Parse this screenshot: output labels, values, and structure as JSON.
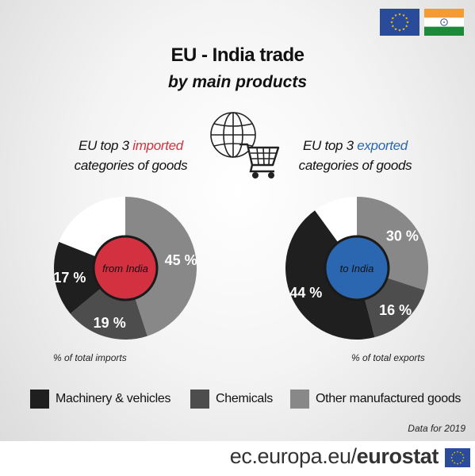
{
  "header": {
    "title": "EU - India trade",
    "subtitle": "by main products"
  },
  "flags": [
    {
      "name": "eu-flag",
      "color": "#2a4a9a"
    },
    {
      "name": "india-flag",
      "colors": [
        "#f39b35",
        "#ffffff",
        "#1d8a3a"
      ]
    }
  ],
  "imports": {
    "heading_prefix": "EU top 3 ",
    "heading_highlight": "imported",
    "heading_suffix": "categories of goods",
    "center_label": "from India",
    "center_color": "#d33040",
    "note": "% of total imports"
  },
  "exports": {
    "heading_prefix": "EU top 3 ",
    "heading_highlight": "exported",
    "heading_suffix": "categories of goods",
    "center_label": "to India",
    "center_color": "#2a67b0",
    "note": "% of total exports"
  },
  "legend": [
    {
      "label": "Machinery & vehicles",
      "color": "#1f1f1f"
    },
    {
      "label": "Chemicals",
      "color": "#4d4d4d"
    },
    {
      "label": "Other manufactured goods",
      "color": "#888888"
    }
  ],
  "data_note": "Data for 2019",
  "footer": {
    "url_prefix": "ec.europa.eu/",
    "brand": "eurostat"
  },
  "chart_data": [
    {
      "type": "pie",
      "series": [
        {
          "name": "Other manufactured goods",
          "value": 45,
          "label": "45 %",
          "color": "#888888"
        },
        {
          "name": "Chemicals",
          "value": 19,
          "label": "19 %",
          "color": "#4d4d4d"
        },
        {
          "name": "Machinery & vehicles",
          "value": 17,
          "label": "17 %",
          "color": "#1f1f1f"
        },
        {
          "name": "Rest",
          "value": 19,
          "label": "",
          "color": "#ffffff"
        }
      ]
    },
    {
      "type": "pie",
      "series": [
        {
          "name": "Other manufactured goods",
          "value": 30,
          "label": "30 %",
          "color": "#888888"
        },
        {
          "name": "Chemicals",
          "value": 16,
          "label": "16 %",
          "color": "#4d4d4d"
        },
        {
          "name": "Machinery & vehicles",
          "value": 44,
          "label": "44 %",
          "color": "#1f1f1f"
        },
        {
          "name": "Rest",
          "value": 10,
          "label": "",
          "color": "#ffffff"
        }
      ]
    }
  ]
}
